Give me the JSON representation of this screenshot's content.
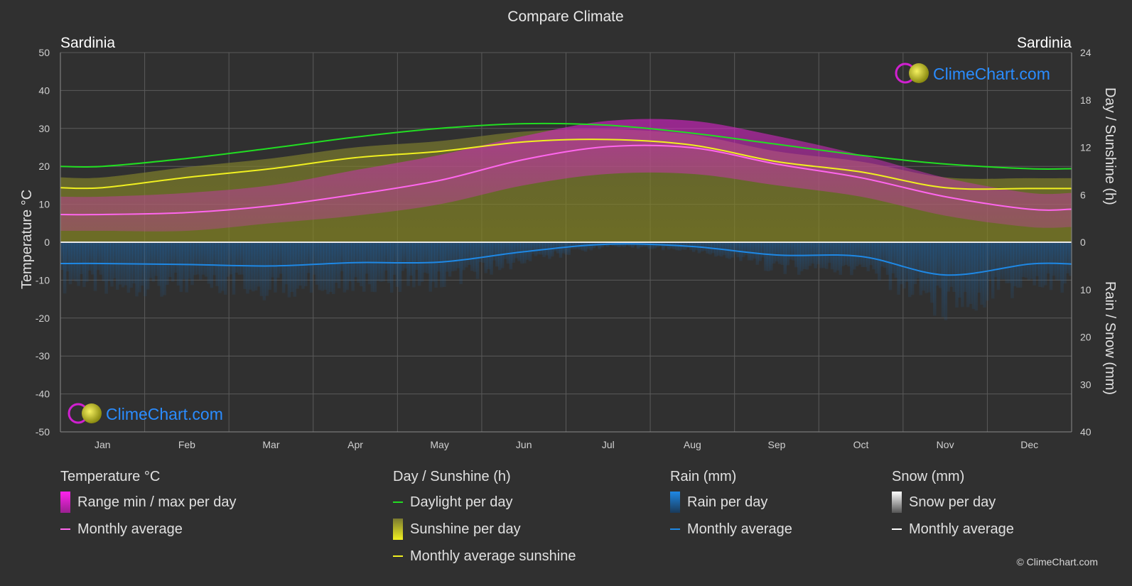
{
  "title": "Compare Climate",
  "location_left": "Sardinia",
  "location_right": "Sardinia",
  "logo_text": "ClimeChart.com",
  "copyright": "© ClimeChart.com",
  "colors": {
    "background": "#303030",
    "daylight": "#22dd22",
    "sunshine_fill": "#a8a820",
    "sunshine_avg": "#f0f020",
    "temp_range": "#dd22cc",
    "temp_avg": "#ff66ee",
    "rain": "#1e88e5",
    "snow": "#ffffff",
    "logo": "#1e90ff"
  },
  "legend": {
    "temperature": {
      "title": "Temperature °C",
      "range_label": "Range min / max per day",
      "avg_label": "Monthly average"
    },
    "sunshine": {
      "title": "Day / Sunshine (h)",
      "daylight_label": "Daylight per day",
      "sunshine_label": "Sunshine per day",
      "avg_label": "Monthly average sunshine"
    },
    "rain": {
      "title": "Rain (mm)",
      "rain_label": "Rain per day",
      "avg_label": "Monthly average"
    },
    "snow": {
      "title": "Snow (mm)",
      "snow_label": "Snow per day",
      "avg_label": "Monthly average"
    }
  },
  "chart_data": {
    "type": "line",
    "months": [
      "Jan",
      "Feb",
      "Mar",
      "Apr",
      "May",
      "Jun",
      "Jul",
      "Aug",
      "Sep",
      "Oct",
      "Nov",
      "Dec"
    ],
    "y_left": {
      "label": "Temperature °C",
      "min": -50,
      "max": 50,
      "ticks": [
        50,
        40,
        30,
        20,
        10,
        0,
        -10,
        -20,
        -30,
        -40,
        -50
      ]
    },
    "y_right_top": {
      "label": "Day / Sunshine (h)",
      "min": 0,
      "max": 24,
      "ticks": [
        24,
        18,
        12,
        6,
        0
      ]
    },
    "y_right_bottom": {
      "label": "Rain / Snow (mm)",
      "min": 0,
      "max": 40,
      "ticks": [
        0,
        10,
        20,
        30,
        40
      ]
    },
    "series": [
      {
        "name": "Daylight per day",
        "unit": "h",
        "values": [
          9.6,
          10.6,
          11.9,
          13.3,
          14.4,
          15.0,
          14.8,
          13.8,
          12.4,
          11.0,
          9.9,
          9.3
        ]
      },
      {
        "name": "Monthly average sunshine",
        "unit": "h",
        "values": [
          6.9,
          8.2,
          9.3,
          10.7,
          11.5,
          12.7,
          13.0,
          12.3,
          10.2,
          8.9,
          6.9,
          6.8
        ]
      },
      {
        "name": "Temperature monthly average",
        "unit": "°C",
        "values": [
          7.3,
          7.8,
          9.6,
          12.6,
          16.3,
          21.8,
          25.2,
          24.9,
          20.6,
          17.0,
          12.0,
          8.7
        ]
      },
      {
        "name": "Temperature daily max (mean)",
        "unit": "°C",
        "values": [
          12,
          13,
          15,
          19,
          23,
          28,
          32,
          32,
          28,
          23,
          17,
          13
        ]
      },
      {
        "name": "Temperature daily min (mean)",
        "unit": "°C",
        "values": [
          3,
          3,
          5,
          7,
          10,
          15,
          18,
          18,
          15,
          12,
          7,
          4
        ]
      },
      {
        "name": "Rain monthly average",
        "unit": "mm",
        "values": [
          4.5,
          4.7,
          5.0,
          4.3,
          4.2,
          2.0,
          0.4,
          0.9,
          2.7,
          3.0,
          6.9,
          4.6
        ]
      },
      {
        "name": "Snow monthly average",
        "unit": "mm",
        "values": [
          0,
          0,
          0,
          0,
          0,
          0,
          0,
          0,
          0,
          0,
          0,
          0
        ]
      }
    ],
    "grid": true
  }
}
